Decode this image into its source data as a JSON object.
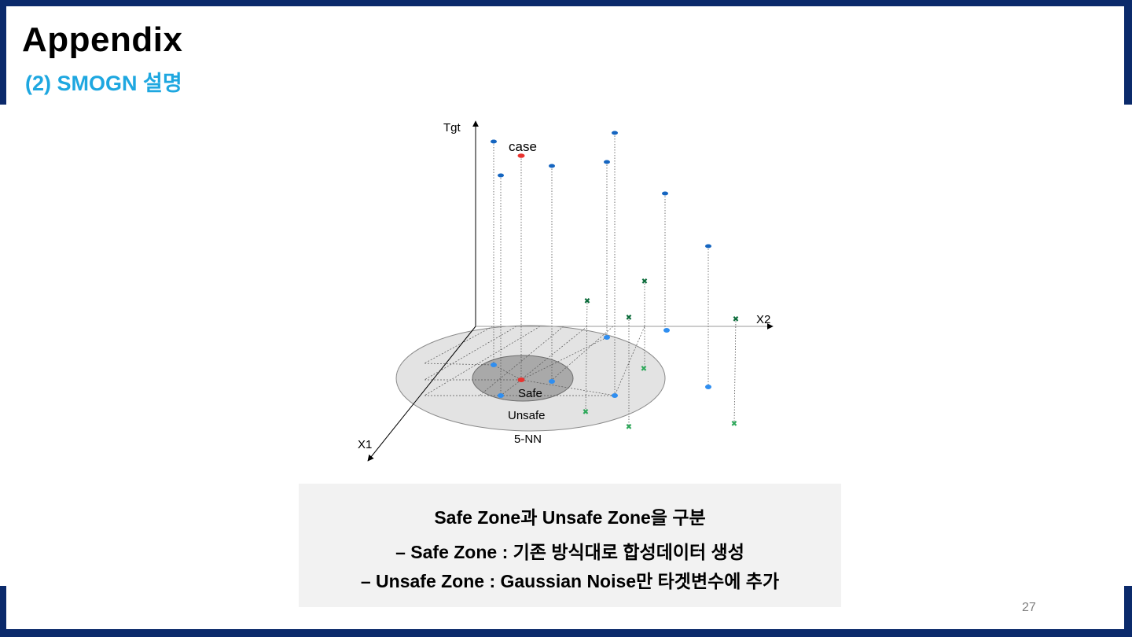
{
  "slide": {
    "title": "Appendix",
    "subtitle": "(2) SMOGN 설명",
    "page_number": "27"
  },
  "diagram": {
    "axis_labels": {
      "y": "Tgt",
      "x2": "X2",
      "x1": "X1"
    },
    "case_label": "case",
    "zone_labels": {
      "safe": "Safe",
      "unsafe": "Unsafe",
      "neighbors": "5-NN"
    },
    "colors": {
      "case": "#e8322e",
      "neighbor_top": "#1565c0",
      "neighbor_floor": "#2f8ef0",
      "cross_dark": "#0b6b3a",
      "cross_light": "#2ea85a",
      "unsafe_fill": "#e3e3e3",
      "safe_fill": "#a9a9a9"
    }
  },
  "note": {
    "heading": "Safe Zone과 Unsafe Zone을 구분",
    "items": [
      "–  Safe Zone : 기존 방식대로 합성데이터 생성",
      "–  Unsafe Zone : Gaussian Noise만 타겟변수에 추가"
    ]
  }
}
